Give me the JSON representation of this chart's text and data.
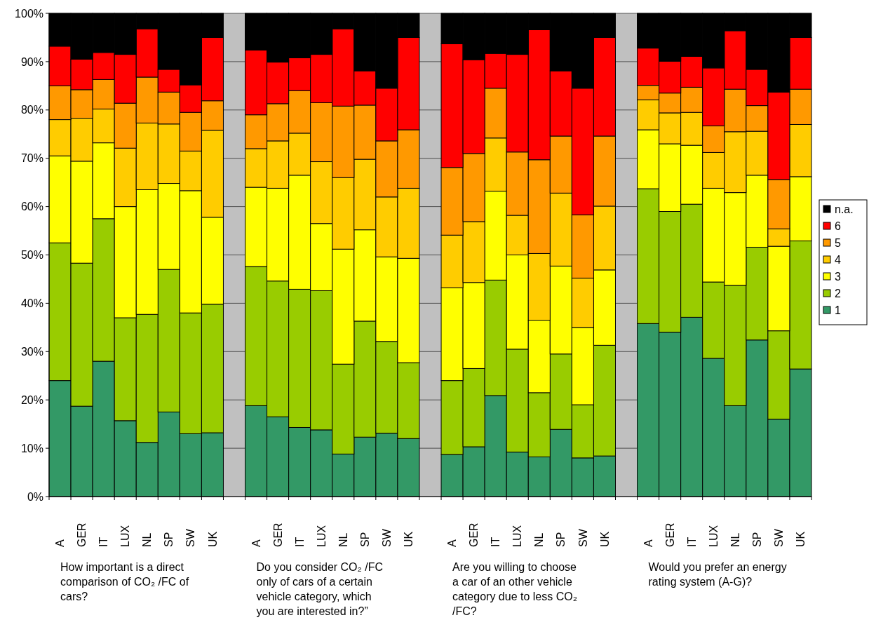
{
  "chart_data": {
    "type": "bar",
    "stacked": true,
    "categories": [
      "A",
      "GER",
      "IT",
      "LUX",
      "NL",
      "SP",
      "SW",
      "UK",
      null,
      "A",
      "GER",
      "IT",
      "LUX",
      "NL",
      "SP",
      "SW",
      "UK",
      null,
      "A",
      "GER",
      "IT",
      "LUX",
      "NL",
      "SP",
      "SW",
      "UK",
      null,
      "A",
      "GER",
      "IT",
      "LUX",
      "NL",
      "SP",
      "SW",
      "UK"
    ],
    "series": [
      {
        "name": "1",
        "color": "#339966",
        "values": [
          24,
          18.7,
          28,
          15.7,
          11.2,
          17.5,
          13,
          13.2,
          null,
          18.8,
          16.5,
          14.3,
          13.8,
          8.8,
          12.3,
          13.1,
          12,
          null,
          8.7,
          10.3,
          20.9,
          9.2,
          8.2,
          13.9,
          8,
          8.4,
          null,
          35.8,
          34,
          37.1,
          28.6,
          18.8,
          32.4,
          16,
          26.4
        ]
      },
      {
        "name": "2",
        "color": "#99cc00",
        "values": [
          28.5,
          29.6,
          29.5,
          21.3,
          26.5,
          29.5,
          25,
          26.6,
          null,
          28.8,
          28.1,
          28.6,
          28.8,
          18.6,
          24,
          19,
          15.7,
          null,
          15.3,
          16.2,
          23.9,
          21.3,
          13.3,
          15.6,
          11,
          22.9,
          null,
          27.9,
          25,
          23.4,
          15.8,
          24.9,
          19.2,
          18.3,
          26.5
        ]
      },
      {
        "name": "3",
        "color": "#ffff00",
        "values": [
          18,
          21.1,
          15.7,
          23,
          25.8,
          17.8,
          25.3,
          18,
          null,
          16.4,
          19.2,
          23.6,
          13.9,
          23.8,
          18.9,
          17.5,
          21.6,
          null,
          19.2,
          17.8,
          18.4,
          19.5,
          15,
          18.2,
          16,
          15.6,
          null,
          12.2,
          14,
          12.2,
          19.4,
          19.2,
          14.9,
          17.5,
          13.3
        ]
      },
      {
        "name": "4",
        "color": "#ffcc00",
        "values": [
          7.5,
          8.9,
          7,
          12.1,
          13.8,
          12.3,
          8.2,
          18,
          null,
          8,
          9.8,
          8.7,
          12.8,
          14.8,
          14.6,
          12.4,
          14.5,
          null,
          10.9,
          12.6,
          11,
          8.2,
          13.8,
          15.1,
          10.2,
          13.2,
          null,
          6.2,
          6.4,
          6.8,
          7.4,
          12.6,
          9.1,
          3.6,
          10.8
        ]
      },
      {
        "name": "5",
        "color": "#ff9900",
        "values": [
          7,
          5.9,
          6.1,
          9.3,
          9.5,
          6.6,
          8,
          6.1,
          null,
          7,
          7.7,
          8.8,
          12.2,
          14.8,
          11.2,
          11.6,
          12.1,
          null,
          14,
          14.1,
          10.3,
          13.1,
          19.4,
          11.8,
          13.1,
          14.5,
          null,
          3,
          4.1,
          5.2,
          5.5,
          8.8,
          5.3,
          10.2,
          7.3
        ]
      },
      {
        "name": "6",
        "color": "#ff0000",
        "values": [
          8.2,
          6.3,
          5.6,
          10.1,
          10,
          4.7,
          5.7,
          13.1,
          null,
          13.4,
          8.6,
          6.8,
          10,
          16,
          7.1,
          10.9,
          19.1,
          null,
          25.6,
          19.4,
          7.2,
          20.2,
          26.9,
          13.5,
          26.2,
          20.4,
          null,
          7.7,
          6.6,
          6.4,
          12,
          12.1,
          7.5,
          18.1,
          10.7
        ]
      },
      {
        "name": "n.a.",
        "color": "#000000",
        "values": [
          6.8,
          9.5,
          8.1,
          8.5,
          3.2,
          11.6,
          14.8,
          5,
          null,
          7.6,
          10.1,
          9.2,
          8.5,
          3.2,
          11.9,
          15.5,
          5,
          null,
          6.3,
          9.6,
          8.3,
          8.5,
          3.4,
          11.9,
          15.5,
          5,
          null,
          7.2,
          9.9,
          8.9,
          11.3,
          3.6,
          11.6,
          16.3,
          5
        ]
      }
    ],
    "ylim": [
      0,
      100
    ],
    "yticks": [
      {
        "value": 0,
        "label": "0%"
      },
      {
        "value": 10,
        "label": "10%"
      },
      {
        "value": 20,
        "label": "20%"
      },
      {
        "value": 30,
        "label": "30%"
      },
      {
        "value": 40,
        "label": "40%"
      },
      {
        "value": 50,
        "label": "50%"
      },
      {
        "value": 60,
        "label": "60%"
      },
      {
        "value": 70,
        "label": "70%"
      },
      {
        "value": 80,
        "label": "80%"
      },
      {
        "value": 90,
        "label": "90%"
      },
      {
        "value": 100,
        "label": "100%"
      }
    ],
    "grid": "y",
    "legend": "right",
    "annotations": [
      "How important is a direct comparison of CO₂ /FC of cars?",
      "Do you consider CO₂ /FC only of cars of a certain vehicle category, which you are interested in?”",
      "Are you willing to choose a car of an other vehicle category due to less CO₂ /FC?",
      "Would you prefer an energy rating system (A-G)?"
    ]
  }
}
